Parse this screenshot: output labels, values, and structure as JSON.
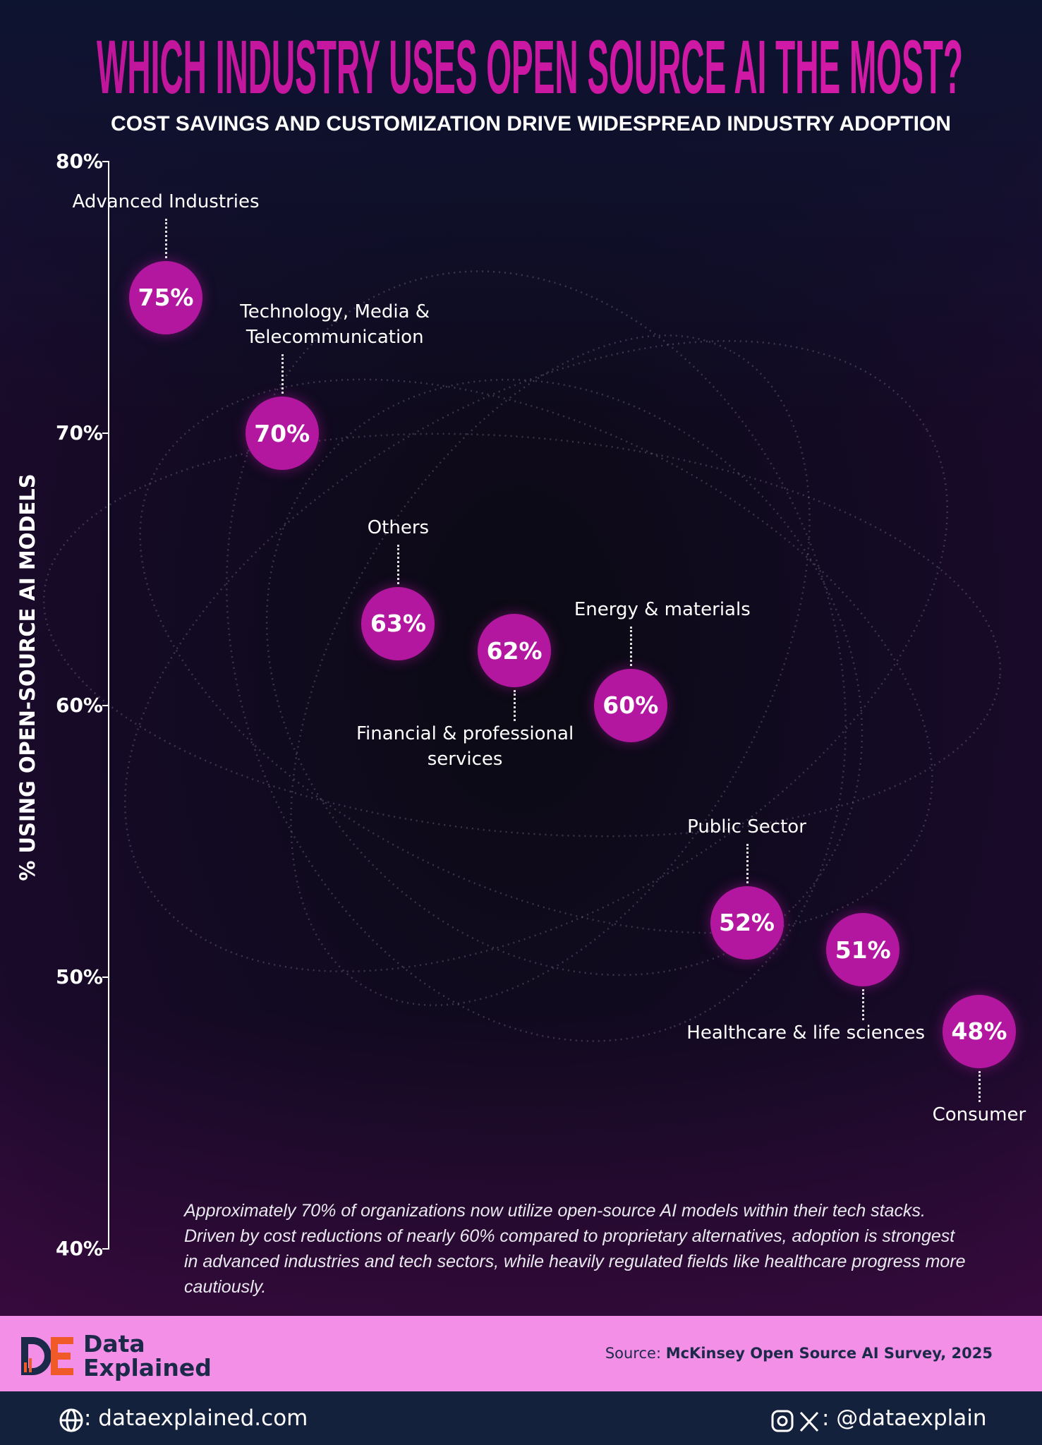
{
  "chart_data": {
    "type": "scatter",
    "title": "WHICH INDUSTRY USES OPEN SOURCE AI THE MOST?",
    "subtitle": "COST SAVINGS AND CUSTOMIZATION DRIVE WIDESPREAD INDUSTRY ADOPTION",
    "y_label": "% USING OPEN-SOURCE AI MODELS",
    "categories": [
      "Advanced Industries",
      "Technology, Media & Telecommunication",
      "Others",
      "Financial & professional services",
      "Energy & materials",
      "Public Sector",
      "Healthcare & life sciences",
      "Consumer"
    ],
    "values": [
      75,
      70,
      63,
      62,
      60,
      52,
      51,
      48
    ],
    "value_labels": [
      "75%",
      "70%",
      "63%",
      "62%",
      "60%",
      "52%",
      "51%",
      "48%"
    ],
    "color": "#b3179f",
    "ylim": [
      40,
      80
    ],
    "yticks": [
      {
        "value": 40,
        "label": "40%"
      },
      {
        "value": 50,
        "label": "50%"
      },
      {
        "value": 60,
        "label": "60%"
      },
      {
        "value": 70,
        "label": "70%"
      },
      {
        "value": 80,
        "label": "80%"
      }
    ],
    "annotation": "Approximately 70% of organizations now utilize open-source AI models within their tech stacks. Driven by cost reductions of nearly 60% compared to proprietary alternatives, adoption is strongest in advanced industries and tech sectors, while heavily regulated fields like healthcare progress more cautiously."
  },
  "footer": {
    "brand": "Data Explained",
    "source_label": "Source:",
    "source": "McKinsey Open Source AI Survey, 2025",
    "website": ": dataexplained.com",
    "social": ": @dataexplain"
  }
}
